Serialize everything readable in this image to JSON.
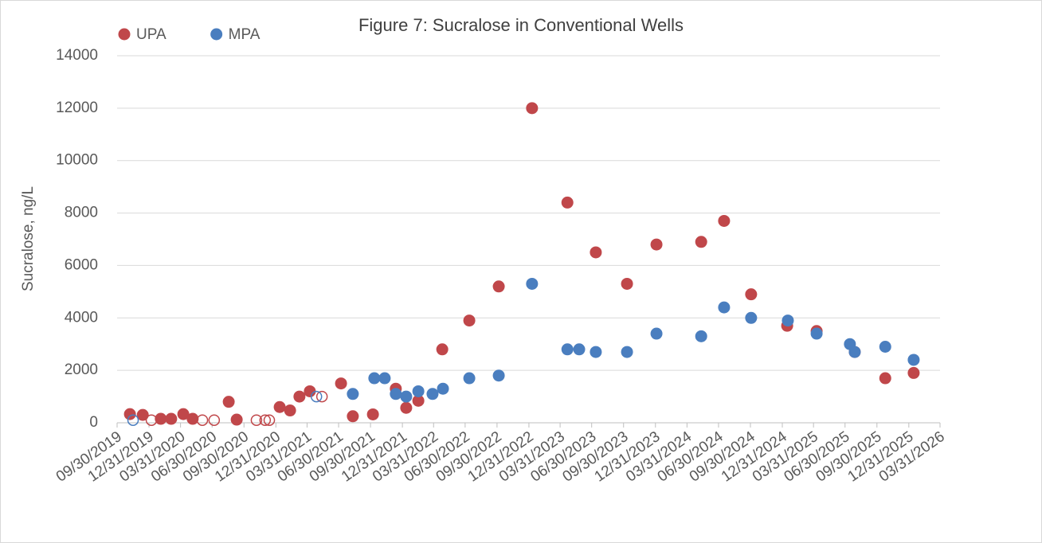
{
  "chart_data": {
    "type": "scatter",
    "title": "Figure 7: Sucralose in Conventional Wells",
    "ylabel": "Sucralose, ng/L",
    "xlim": [
      "09/30/2019",
      "03/31/2026"
    ],
    "xticks": [
      "09/30/2019",
      "12/31/2019",
      "03/31/2020",
      "06/30/2020",
      "09/30/2020",
      "12/31/2020",
      "03/31/2021",
      "06/30/2021",
      "09/30/2021",
      "12/31/2021",
      "03/31/2022",
      "06/30/2022",
      "09/30/2022",
      "12/31/2022",
      "03/31/2023",
      "06/30/2023",
      "09/30/2023",
      "12/31/2023",
      "03/31/2024",
      "06/30/2024",
      "09/30/2024",
      "12/31/2024",
      "03/31/2025",
      "06/30/2025",
      "09/30/2025",
      "12/31/2025",
      "03/31/2026"
    ],
    "ylim": [
      0,
      14000
    ],
    "yticks": [
      0,
      2000,
      4000,
      6000,
      8000,
      10000,
      12000,
      14000
    ],
    "grid": true,
    "legend": "top-left",
    "series": [
      {
        "name": "UPA",
        "color": "#c0474a",
        "x": [
          "11/06/2019",
          "12/13/2019",
          "02/03/2020",
          "03/04/2020",
          "04/08/2020",
          "05/05/2020",
          "08/17/2020",
          "09/09/2020",
          "01/11/2021",
          "02/10/2021",
          "03/09/2021",
          "04/08/2021",
          "07/07/2021",
          "08/10/2021",
          "10/07/2021",
          "12/12/2021",
          "01/11/2022",
          "02/15/2022",
          "04/25/2022",
          "07/12/2022",
          "10/05/2022",
          "01/09/2023",
          "04/21/2023",
          "07/12/2023",
          "10/10/2023",
          "01/03/2024",
          "05/11/2024",
          "07/16/2024",
          "10/02/2024",
          "01/14/2025",
          "04/09/2025",
          "07/28/2025",
          "10/24/2025",
          "01/14/2026"
        ],
        "values": [
          330,
          300,
          150,
          150,
          330,
          150,
          800,
          120,
          600,
          470,
          1000,
          1200,
          1500,
          250,
          320,
          1300,
          570,
          840,
          2800,
          3900,
          5200,
          12000,
          8400,
          6500,
          5300,
          6800,
          6900,
          7700,
          4900,
          3700,
          3500,
          2700,
          1700,
          1900
        ]
      },
      {
        "name": "MPA",
        "color": "#4a7ebf",
        "x": [
          "08/10/2021",
          "10/11/2021",
          "11/10/2021",
          "12/12/2021",
          "01/11/2022",
          "02/15/2022",
          "03/28/2022",
          "04/27/2022",
          "07/12/2022",
          "10/05/2022",
          "01/09/2023",
          "04/21/2023",
          "05/25/2023",
          "07/12/2023",
          "10/10/2023",
          "01/03/2024",
          "05/11/2024",
          "07/16/2024",
          "10/02/2024",
          "01/16/2025",
          "04/09/2025",
          "07/14/2025",
          "07/28/2025",
          "10/24/2025",
          "01/14/2026"
        ],
        "values": [
          1100,
          1700,
          1700,
          1100,
          1000,
          1200,
          1100,
          1300,
          1700,
          1800,
          5300,
          2800,
          2800,
          2700,
          2700,
          3400,
          3300,
          4400,
          4000,
          3900,
          3400,
          3000,
          2700,
          2900,
          2400
        ]
      },
      {
        "color": "#c0474a",
        "hollow": true,
        "x": [
          "01/07/2020",
          "06/02/2020",
          "07/06/2020",
          "11/05/2020",
          "11/30/2020",
          "12/12/2020",
          "05/13/2021"
        ],
        "values": [
          100,
          100,
          100,
          100,
          100,
          100,
          1000
        ]
      },
      {
        "color": "#4a7ebf",
        "hollow": true,
        "x": [
          "11/15/2019",
          "04/27/2021"
        ],
        "values": [
          100,
          1000
        ]
      }
    ]
  }
}
